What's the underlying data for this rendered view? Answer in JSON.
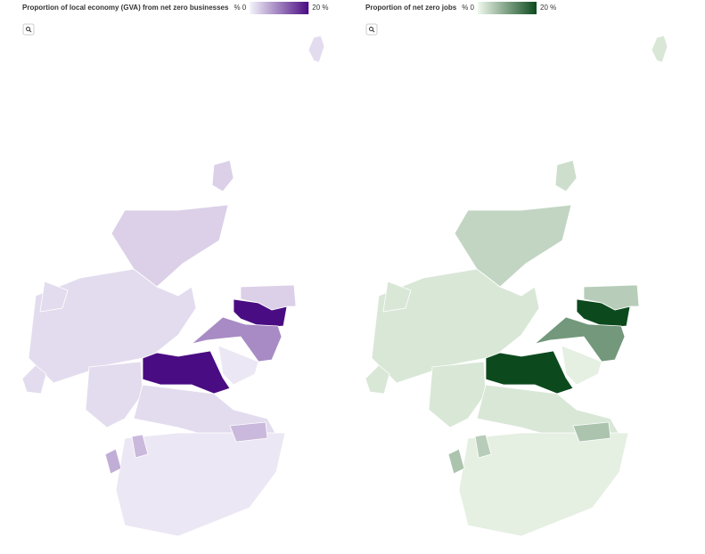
{
  "maps": [
    {
      "title": "Proportion of local economy (GVA) from net zero businesses",
      "legend": {
        "min": 0,
        "max": 20,
        "min_label": "% 0",
        "max_label": "20 %",
        "low_color": "#f4f3fa",
        "high_color": "#4a0c82"
      },
      "values": [
        2,
        3,
        3,
        2,
        20,
        3,
        9,
        20,
        2,
        2,
        1,
        1,
        5,
        6,
        5,
        2,
        2
      ]
    },
    {
      "title": "Proportion of net zero jobs",
      "legend": {
        "min": 0,
        "max": 20,
        "min_label": "% 0",
        "max_label": "20 %",
        "low_color": "#f0f8ec",
        "high_color": "#0c4a1e"
      },
      "values": [
        2,
        3,
        4,
        2,
        20,
        5,
        11,
        20,
        2,
        2,
        1,
        1,
        6,
        6,
        5,
        2,
        2
      ]
    }
  ]
}
